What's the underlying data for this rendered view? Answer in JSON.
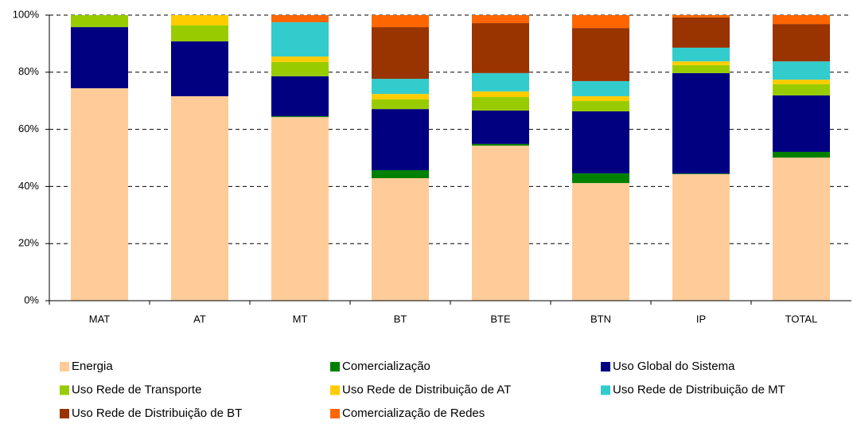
{
  "chart_data": {
    "type": "stacked_bar",
    "categories": [
      "MAT",
      "AT",
      "MT",
      "BT",
      "BTE",
      "BTN",
      "IP",
      "TOTAL"
    ],
    "series": [
      {
        "name": "Energia",
        "color": "#FFCC99",
        "values": [
          74.4,
          71.6,
          64.3,
          42.9,
          54.3,
          41.2,
          44.3,
          50.1
        ]
      },
      {
        "name": "Comercialização",
        "color": "#008000",
        "values": [
          0,
          0,
          0.3,
          2.8,
          0.6,
          3.4,
          0.2,
          2.0
        ]
      },
      {
        "name": "Uso Global do Sistema",
        "color": "#000080",
        "values": [
          21.4,
          19.2,
          14.0,
          21.4,
          11.7,
          21.7,
          35.2,
          19.8
        ]
      },
      {
        "name": "Uso Rede de Transporte",
        "color": "#99CC00",
        "values": [
          4.2,
          5.6,
          5.0,
          3.4,
          4.7,
          3.6,
          2.8,
          3.9
        ]
      },
      {
        "name": "Uso Rede de Distribuição de AT",
        "color": "#FFCC00",
        "values": [
          0,
          3.6,
          1.9,
          1.9,
          2.0,
          1.7,
          1.3,
          1.6
        ]
      },
      {
        "name": "Uso Rede de Distribuição de MT",
        "color": "#33CCCC",
        "values": [
          0,
          0,
          12.0,
          5.3,
          6.4,
          5.3,
          4.8,
          6.4
        ]
      },
      {
        "name": "Uso Rede de Distribuição de BT",
        "color": "#993300",
        "values": [
          0,
          0,
          0,
          18.1,
          17.5,
          18.6,
          10.6,
          13.1
        ]
      },
      {
        "name": "Comercialização de Redes",
        "color": "#FF6600",
        "values": [
          0,
          0,
          2.5,
          4.2,
          2.8,
          4.5,
          0.8,
          3.1
        ]
      }
    ],
    "ylim": [
      0,
      100
    ],
    "yticks": [
      {
        "value": 0,
        "label": "0%"
      },
      {
        "value": 20,
        "label": "20%"
      },
      {
        "value": 40,
        "label": "40%"
      },
      {
        "value": 60,
        "label": "60%"
      },
      {
        "value": 80,
        "label": "80%"
      },
      {
        "value": 100,
        "label": "100%"
      }
    ],
    "grid": true
  }
}
